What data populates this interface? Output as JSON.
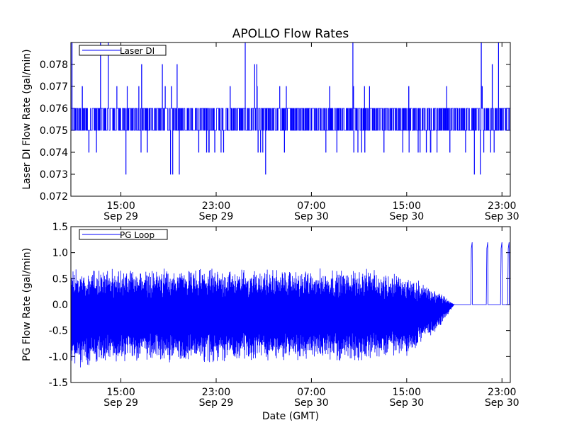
{
  "figure_title": "APOLLO Flow Rates",
  "chart_data": [
    {
      "type": "line",
      "title": "APOLLO Flow Rates",
      "ylabel": "Laser DI Flow Rate (gal/min)",
      "xlabel": "",
      "ylim": [
        0.072,
        0.079
      ],
      "xlim_hours": [
        -4.2,
        32.7
      ],
      "x_unit": "hours since 2000-09-29 11:00 GMT (approx.)",
      "yticks": [
        "0.072",
        "0.073",
        "0.074",
        "0.075",
        "0.076",
        "0.077",
        "0.078"
      ],
      "ytick_values": [
        0.072,
        0.073,
        0.074,
        0.075,
        0.076,
        0.077,
        0.078
      ],
      "xticks": [
        {
          "hours": 0,
          "time": "15:00",
          "date": "Sep 29"
        },
        {
          "hours": 8,
          "time": "23:00",
          "date": "Sep 29"
        },
        {
          "hours": 16,
          "time": "07:00",
          "date": "Sep 30"
        },
        {
          "hours": 24,
          "time": "15:00",
          "date": "Sep 30"
        },
        {
          "hours": 32,
          "time": "23:00",
          "date": "Sep 30"
        }
      ],
      "legend": {
        "label": "Laser DI",
        "position": "upper-left"
      },
      "series": [
        {
          "name": "Laser DI",
          "color": "#0000ff",
          "typical_range": [
            0.075,
            0.076
          ],
          "noise_levels": [
            0.073,
            0.074,
            0.077,
            0.078
          ],
          "spike_max": 0.079
        }
      ]
    },
    {
      "type": "line",
      "title": "",
      "ylabel": "PG Flow Rate (gal/min)",
      "xlabel": "Date (GMT)",
      "ylim": [
        -1.5,
        1.5
      ],
      "xlim_hours": [
        -4.2,
        32.7
      ],
      "yticks": [
        "-1.5",
        "-1.0",
        "-0.5",
        "0.0",
        "0.5",
        "1.0",
        "1.5"
      ],
      "ytick_values": [
        -1.5,
        -1.0,
        -0.5,
        0.0,
        0.5,
        1.0,
        1.5
      ],
      "xticks": [
        {
          "hours": 0,
          "time": "15:00",
          "date": "Sep 29"
        },
        {
          "hours": 8,
          "time": "23:00",
          "date": "Sep 29"
        },
        {
          "hours": 16,
          "time": "07:00",
          "date": "Sep 30"
        },
        {
          "hours": 24,
          "time": "15:00",
          "date": "Sep 30"
        },
        {
          "hours": 32,
          "time": "23:00",
          "date": "Sep 30"
        }
      ],
      "legend": {
        "label": "PG Loop",
        "position": "upper-left"
      },
      "series": [
        {
          "name": "PG Loop",
          "color": "#0000ff",
          "oscillation_envelope": [
            [
              -4.2,
              -1.1,
              0.6
            ],
            [
              3,
              -1.0,
              0.6
            ],
            [
              12,
              -1.0,
              0.6
            ],
            [
              20,
              -1.0,
              0.6
            ],
            [
              24,
              -0.9,
              0.5
            ],
            [
              26.5,
              -0.5,
              0.25
            ],
            [
              28,
              0.0,
              0.0
            ]
          ],
          "flat_value_after_hour": 28.0,
          "flat_value": 0.0,
          "spikes": [
            {
              "hours": 29.5,
              "value": 1.2
            },
            {
              "hours": 30.8,
              "value": 1.2
            },
            {
              "hours": 32.0,
              "value": 1.2
            },
            {
              "hours": 32.6,
              "value": 1.2
            }
          ]
        }
      ]
    }
  ]
}
